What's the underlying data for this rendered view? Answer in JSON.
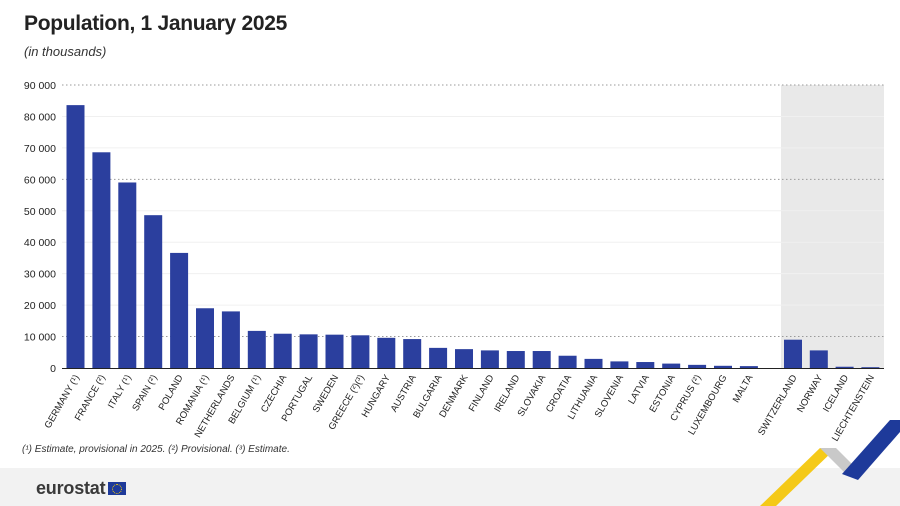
{
  "header": {
    "title": "Population, 1 January 2025",
    "subtitle": "(in thousands)"
  },
  "footnote": "(¹) Estimate, provisional in 2025. (²) Provisional. (³) Estimate.",
  "logo": {
    "text": "eurostat",
    "flag_icon": "eu-flag-icon"
  },
  "colors": {
    "bar": "#2b3f9e",
    "highlight_band": "#e9e9e9",
    "accent_blue": "#1e3a9a",
    "accent_yellow": "#f4c400"
  },
  "chart_data": {
    "type": "bar",
    "title": "Population, 1 January 2025",
    "ylabel": "(in thousands)",
    "ylim": [
      0,
      90000
    ],
    "yticks": [
      0,
      10000,
      20000,
      30000,
      40000,
      50000,
      60000,
      70000,
      80000,
      90000
    ],
    "ytick_labels": [
      "0",
      "10 000",
      "20 000",
      "30 000",
      "40 000",
      "50 000",
      "60 000",
      "70 000",
      "80 000",
      "90 000"
    ],
    "grid": "dotted at 10 000, 60 000, 90 000",
    "categories": [
      "GERMANY (¹)",
      "FRANCE (²)",
      "ITALY (¹)",
      "SPAIN (²)",
      "POLAND",
      "ROMANIA (¹)",
      "NETHERLANDS",
      "BELGIUM (¹)",
      "CZECHIA",
      "PORTUGAL",
      "SWEDEN",
      "GREECE (²)(³)",
      "HUNGARY",
      "AUSTRIA",
      "BULGARIA",
      "DENMARK",
      "FINLAND",
      "IRELAND",
      "SLOVAKIA",
      "CROATIA",
      "LITHUANIA",
      "SLOVENIA",
      "LATVIA",
      "ESTONIA",
      "CYPRUS (²)",
      "LUXEMBOURG",
      "MALTA",
      "SWITZERLAND",
      "NORWAY",
      "ICELAND",
      "LIECHTENSTEIN"
    ],
    "values": [
      83600,
      68600,
      59000,
      48600,
      36600,
      19000,
      18000,
      11800,
      10900,
      10700,
      10600,
      10400,
      9600,
      9200,
      6400,
      6000,
      5600,
      5400,
      5400,
      3900,
      2900,
      2100,
      1900,
      1400,
      1000,
      700,
      600,
      9000,
      5600,
      400,
      40
    ],
    "highlighted_group": [
      "SWITZERLAND",
      "NORWAY",
      "ICELAND",
      "LIECHTENSTEIN"
    ]
  }
}
